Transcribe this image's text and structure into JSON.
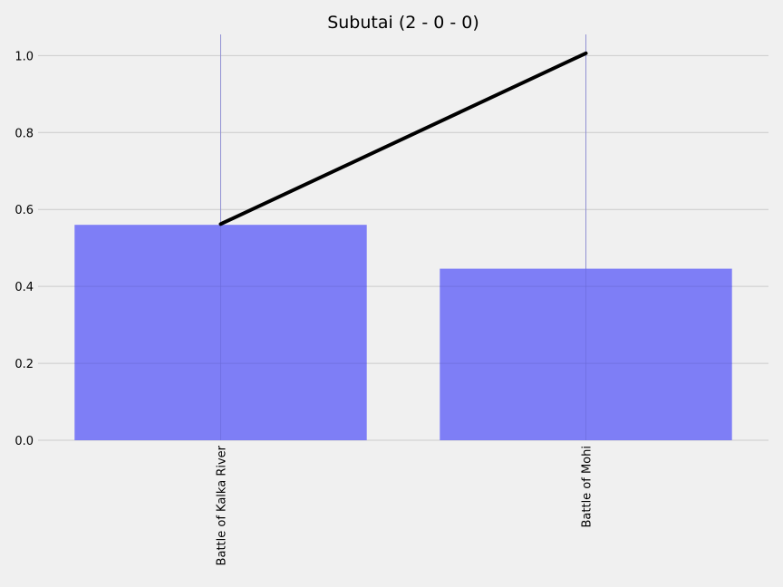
{
  "chart_data": {
    "type": "bar",
    "title": "Subutai (2 - 0 - 0)",
    "xlabel": "",
    "ylabel": "",
    "categories": [
      "Battle of Kalka River",
      "Battle of Mohi"
    ],
    "series": [
      {
        "type": "bar",
        "values": [
          0.56,
          0.446
        ],
        "color": "#7777f5"
      },
      {
        "type": "line",
        "values": [
          0.562,
          1.006
        ],
        "color": "#000000"
      }
    ],
    "ylim": [
      0,
      1.055
    ],
    "yticks": [
      0.0,
      0.2,
      0.4,
      0.6,
      0.8,
      1.0
    ],
    "ytick_labels": [
      "0.0",
      "0.2",
      "0.4",
      "0.6",
      "0.8",
      "1.0"
    ],
    "grid": true,
    "legend": "none",
    "background": "#f0f0f0",
    "grid_color": "#cbcbcb"
  }
}
